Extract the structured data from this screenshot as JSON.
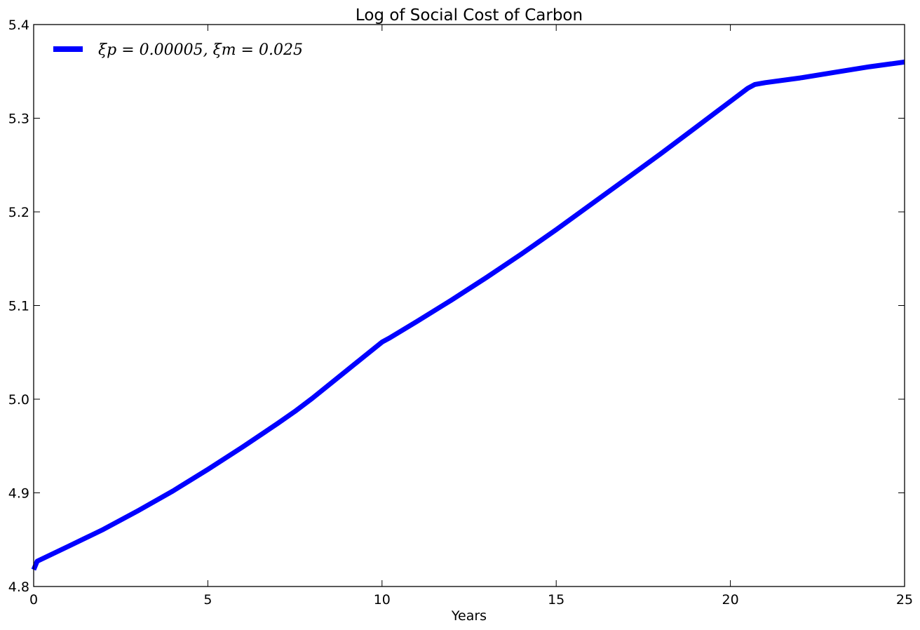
{
  "chart_data": {
    "type": "line",
    "title": "Log of Social Cost of Carbon",
    "xlabel": "Years",
    "ylabel": "",
    "xlim": [
      0,
      25
    ],
    "ylim": [
      4.8,
      5.4
    ],
    "xticks": [
      0,
      5,
      10,
      15,
      20,
      25
    ],
    "yticks": [
      4.8,
      4.9,
      5.0,
      5.1,
      5.2,
      5.3,
      5.4
    ],
    "xtick_labels": [
      "0",
      "5",
      "10",
      "15",
      "20",
      "25"
    ],
    "ytick_labels": [
      "4.8",
      "4.9",
      "5.0",
      "5.1",
      "5.2",
      "5.3",
      "5.4"
    ],
    "grid": false,
    "legend_position": "top-left",
    "series": [
      {
        "name": "ξp = 0.00005, ξm = 0.025",
        "color": "#0000ff",
        "x": [
          0,
          0.1,
          1,
          2,
          3,
          4,
          5,
          6,
          7,
          7.5,
          8,
          9,
          10,
          10.2,
          11,
          12,
          13,
          14,
          15,
          16,
          17,
          18,
          19,
          20,
          20.5,
          20.7,
          21,
          22,
          23,
          24,
          25
        ],
        "y": [
          4.818,
          4.827,
          4.843,
          4.861,
          4.881,
          4.902,
          4.925,
          4.949,
          4.974,
          4.987,
          5.001,
          5.031,
          5.061,
          5.065,
          5.083,
          5.106,
          5.13,
          5.155,
          5.181,
          5.208,
          5.235,
          5.262,
          5.29,
          5.318,
          5.332,
          5.336,
          5.338,
          5.343,
          5.349,
          5.355,
          5.36
        ]
      }
    ]
  }
}
